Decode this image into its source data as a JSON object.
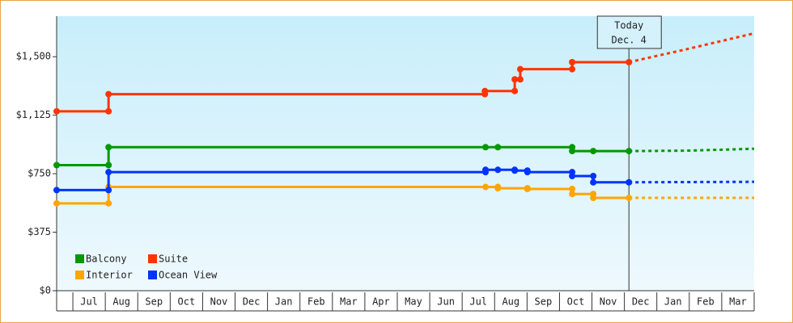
{
  "chart_data": {
    "type": "step-line",
    "categories": [
      null,
      "Jul",
      "Aug",
      "Sep",
      "Oct",
      "Nov",
      "Dec",
      "Jan",
      "Feb",
      "Mar",
      "Apr",
      "May",
      "Jun",
      "Jul",
      "Aug",
      "Sep",
      "Oct",
      "Nov",
      "Dec",
      "Jan",
      "Feb",
      "Mar"
    ],
    "xlim": [
      0.5,
      22
    ],
    "ylim": [
      0,
      1760
    ],
    "yticks": [
      {
        "value": 0,
        "label": "$0"
      },
      {
        "value": 375,
        "label": "$375"
      },
      {
        "value": 750,
        "label": "$750"
      },
      {
        "value": 1125,
        "label": "$1,125"
      },
      {
        "value": 1500,
        "label": "$1,500"
      }
    ],
    "annotation": {
      "lines": [
        "Today",
        "Dec. 4"
      ],
      "x": 18.14
    },
    "legend": "bottom-left",
    "series": [
      {
        "name": "Balcony",
        "color": "#009900",
        "x": [
          0.5,
          2.1,
          13.72,
          14.1,
          16.39,
          17.04,
          18.14
        ],
        "values": [
          805,
          920,
          920,
          920,
          895,
          895,
          895
        ],
        "forecast_x": [
          18.14,
          20,
          22
        ],
        "forecast_values": [
          895,
          898,
          910
        ]
      },
      {
        "name": "Suite",
        "color": "#ff3300",
        "x": [
          0.5,
          2.1,
          13.7,
          14.62,
          14.79,
          16.39,
          18.14
        ],
        "values": [
          1150,
          1260,
          1280,
          1355,
          1420,
          1465,
          1465
        ],
        "forecast_x": [
          18.14,
          20,
          22
        ],
        "forecast_values": [
          1465,
          1552,
          1650
        ]
      },
      {
        "name": "Interior",
        "color": "#ffa500",
        "x": [
          0.5,
          2.1,
          13.72,
          14.1,
          15.01,
          16.39,
          17.04,
          18.14
        ],
        "values": [
          560,
          665,
          665,
          657,
          652,
          620,
          595,
          595
        ],
        "forecast_x": [
          18.14,
          22
        ],
        "forecast_values": [
          595,
          595
        ]
      },
      {
        "name": "Ocean View",
        "color": "#0033ff",
        "x": [
          0.5,
          2.1,
          13.72,
          14.1,
          14.62,
          15.01,
          16.39,
          17.04,
          18.14
        ],
        "values": [
          645,
          760,
          775,
          775,
          770,
          760,
          735,
          695,
          695
        ],
        "forecast_x": [
          18.14,
          22
        ],
        "forecast_values": [
          695,
          698
        ]
      }
    ]
  }
}
